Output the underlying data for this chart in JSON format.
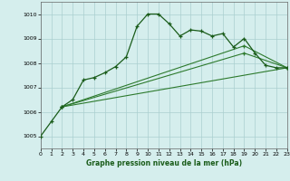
{
  "xlabel": "Graphe pression niveau de la mer (hPa)",
  "ylim": [
    1004.5,
    1010.5
  ],
  "xlim": [
    0,
    23
  ],
  "yticks": [
    1005,
    1006,
    1007,
    1008,
    1009,
    1010
  ],
  "xticks": [
    0,
    1,
    2,
    3,
    4,
    5,
    6,
    7,
    8,
    9,
    10,
    11,
    12,
    13,
    14,
    15,
    16,
    17,
    18,
    19,
    20,
    21,
    22,
    23
  ],
  "bg_color": "#d5eeed",
  "line_dark": "#1a5c1a",
  "line_mid": "#2d7a2d",
  "grid_color": "#aacfcf",
  "series_main": {
    "x": [
      0,
      1,
      2,
      3,
      4,
      5,
      6,
      7,
      8,
      9,
      10,
      11,
      12,
      13,
      14,
      15,
      16,
      17,
      18,
      19,
      20,
      21,
      22,
      23
    ],
    "y": [
      1005.0,
      1005.6,
      1006.2,
      1006.5,
      1007.3,
      1007.4,
      1007.6,
      1007.85,
      1008.25,
      1009.5,
      1010.0,
      1010.0,
      1009.6,
      1009.1,
      1009.35,
      1009.3,
      1009.1,
      1009.2,
      1008.65,
      1009.0,
      1008.4,
      1007.9,
      1007.8,
      1007.8
    ]
  },
  "line2": {
    "x": [
      2,
      23
    ],
    "y": [
      1006.2,
      1007.8
    ]
  },
  "line3": {
    "x": [
      2,
      19,
      23
    ],
    "y": [
      1006.2,
      1008.4,
      1007.8
    ]
  },
  "line4": {
    "x": [
      2,
      19,
      23
    ],
    "y": [
      1006.2,
      1008.7,
      1007.8
    ]
  }
}
